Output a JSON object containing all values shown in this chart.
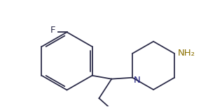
{
  "background": "#ffffff",
  "bond_color": "#2d2d4a",
  "atom_colors": {
    "F": "#2d2d4a",
    "N": "#1a1a7a",
    "NH2": "#8B7000"
  },
  "figsize": [
    3.07,
    1.54
  ],
  "dpi": 100
}
